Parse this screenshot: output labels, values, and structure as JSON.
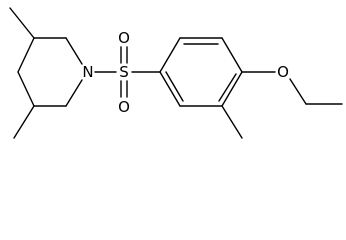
{
  "nodes": [
    {
      "label": "N"
    },
    {
      "label": "S"
    },
    {
      "label": "O"
    },
    {
      "label": "O"
    },
    {
      "label": "O"
    }
  ]
}
